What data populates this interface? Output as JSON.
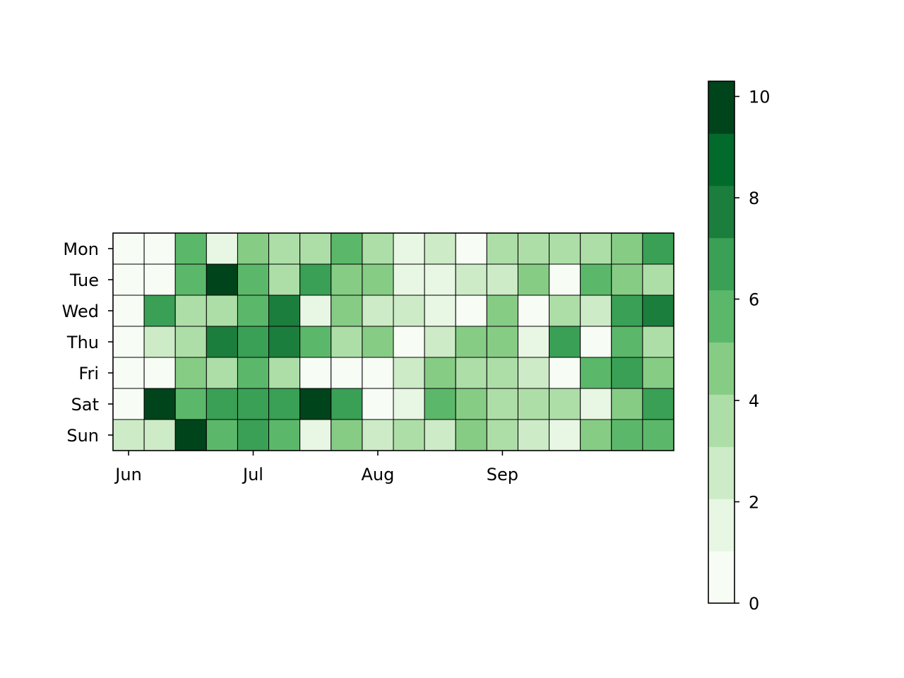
{
  "chart_data": {
    "type": "heatmap",
    "title": "",
    "xlabel": "",
    "ylabel": "",
    "rows": [
      "Mon",
      "Tue",
      "Wed",
      "Thu",
      "Fri",
      "Sat",
      "Sun"
    ],
    "x_tick_labels": [
      {
        "label": "Jun",
        "week": 0
      },
      {
        "label": "Jul",
        "week": 4
      },
      {
        "label": "Aug",
        "week": 8
      },
      {
        "label": "Sep",
        "week": 12
      }
    ],
    "num_weeks": 18,
    "values": [
      [
        0,
        0,
        6,
        2,
        5,
        4,
        4,
        6,
        4,
        2,
        3,
        1,
        4,
        4,
        4,
        4,
        5,
        7
      ],
      [
        0,
        0,
        6,
        10,
        6,
        4,
        7,
        5,
        5,
        2,
        2,
        3,
        3,
        5,
        1,
        6,
        5,
        4
      ],
      [
        0,
        7,
        4,
        4,
        6,
        8,
        2,
        5,
        3,
        3,
        2,
        1,
        5,
        0,
        4,
        3,
        7,
        8
      ],
      [
        0,
        3,
        4,
        8,
        7,
        8,
        6,
        4,
        5,
        1,
        3,
        5,
        5,
        2,
        7,
        1,
        6,
        4
      ],
      [
        0,
        1,
        5,
        4,
        6,
        4,
        1,
        0,
        1,
        3,
        5,
        4,
        4,
        3,
        1,
        6,
        7,
        5
      ],
      [
        0,
        10,
        6,
        7,
        7,
        7,
        10,
        7,
        1,
        2,
        6,
        5,
        4,
        4,
        4,
        2,
        5,
        7
      ],
      [
        3,
        3,
        10,
        6,
        7,
        6,
        2,
        5,
        3,
        4,
        3,
        5,
        4,
        3,
        2,
        5,
        6,
        6
      ]
    ],
    "colorbar": {
      "min": 0,
      "max": 10.3,
      "ticks": [
        0,
        2,
        4,
        6,
        8,
        10
      ],
      "colors": [
        "#f7fcf5",
        "#e5f5e0",
        "#c7e9c0",
        "#a1d99b",
        "#74c476",
        "#41ab5d",
        "#238b45",
        "#006d2c",
        "#00441b"
      ],
      "band_colors": [
        "#f7fcf5",
        "#e8f6e4",
        "#ccebc6",
        "#addea7",
        "#86cc85",
        "#5bb86a",
        "#39a055",
        "#1b7e3d",
        "#026b2c",
        "#00441b"
      ]
    }
  }
}
